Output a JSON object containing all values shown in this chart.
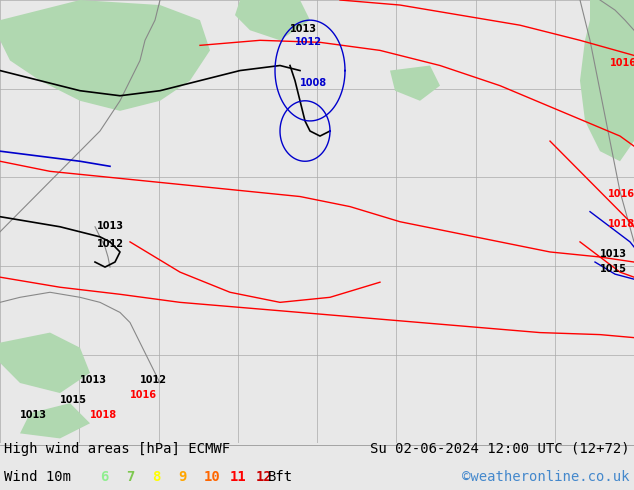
{
  "title_left": "High wind areas [hPa] ECMWF",
  "title_right": "Su 02-06-2024 12:00 UTC (12+72)",
  "subtitle_left": "Wind 10m",
  "subtitle_right": "©weatheronline.co.uk",
  "legend_values": [
    "6",
    "7",
    "8",
    "9",
    "10",
    "11",
    "12",
    "Bft"
  ],
  "legend_colors": [
    "#90ee90",
    "#7ec850",
    "#ffff00",
    "#ffa500",
    "#ff6600",
    "#ff0000",
    "#cc0000",
    "#000000"
  ],
  "background_color": "#d0d8e0",
  "map_background": "#e8e8e8",
  "green_fill": "#b0d8b0",
  "bottom_bar_color": "#c8d8c8",
  "title_fontsize": 10,
  "legend_fontsize": 10,
  "figsize": [
    6.34,
    4.9
  ],
  "dpi": 100
}
